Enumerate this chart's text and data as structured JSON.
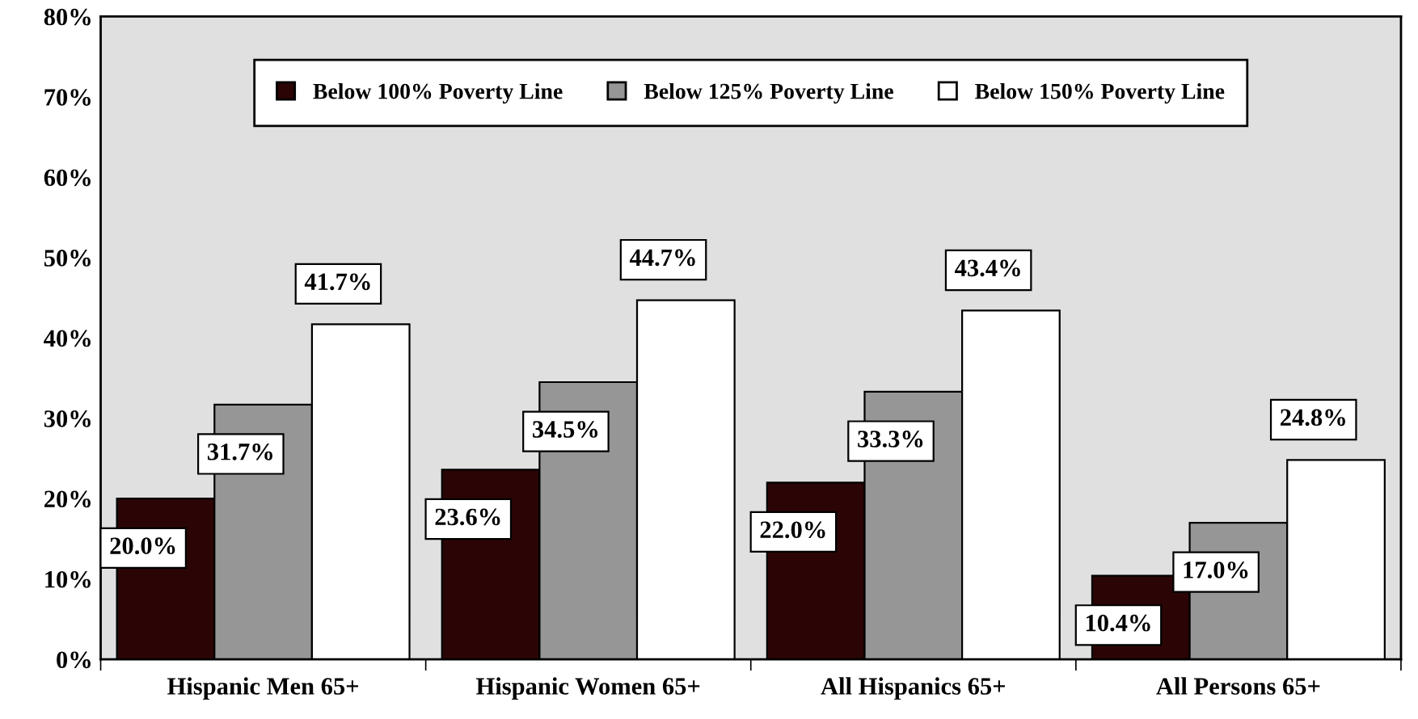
{
  "chart_data": {
    "type": "bar",
    "categories": [
      "Hispanic Men 65+",
      "Hispanic Women 65+",
      "All Hispanics 65+",
      "All Persons 65+"
    ],
    "series": [
      {
        "name": "Below 100% Poverty Line",
        "color": "#2b0505",
        "values": [
          20.0,
          23.6,
          22.0,
          10.4
        ],
        "value_labels": [
          "20.0%",
          "23.6%",
          "22.0%",
          "10.4%"
        ]
      },
      {
        "name": "Below 125% Poverty Line",
        "color": "#969696",
        "values": [
          31.7,
          34.5,
          33.3,
          17.0
        ],
        "value_labels": [
          "31.7%",
          "34.5%",
          "33.3%",
          "17.0%"
        ]
      },
      {
        "name": "Below 150% Poverty Line",
        "color": "#ffffff",
        "values": [
          41.7,
          44.7,
          43.4,
          24.8
        ],
        "value_labels": [
          "41.7%",
          "44.7%",
          "43.4%",
          "24.8%"
        ]
      }
    ],
    "ylim": [
      0,
      80
    ],
    "yticks": [
      {
        "value": 0,
        "label": "0%"
      },
      {
        "value": 10,
        "label": "10%"
      },
      {
        "value": 20,
        "label": "20%"
      },
      {
        "value": 30,
        "label": "30%"
      },
      {
        "value": 40,
        "label": "40%"
      },
      {
        "value": 50,
        "label": "50%"
      },
      {
        "value": 60,
        "label": "60%"
      },
      {
        "value": 70,
        "label": "70%"
      },
      {
        "value": 80,
        "label": "80%"
      }
    ],
    "grid": false,
    "legend": "top"
  }
}
